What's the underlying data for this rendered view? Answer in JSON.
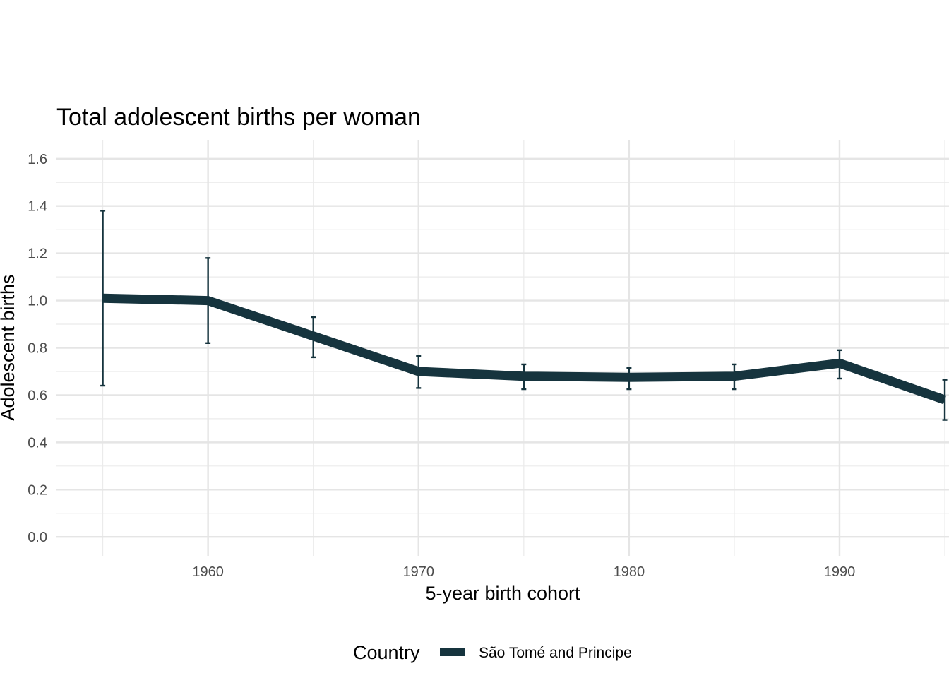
{
  "chart_data": {
    "type": "line",
    "title": "Total adolescent births per woman",
    "xlabel": "5-year birth cohort",
    "ylabel": "Adolescent births",
    "x": [
      1955,
      1960,
      1965,
      1970,
      1975,
      1980,
      1985,
      1990,
      1995
    ],
    "xlim": [
      1952.8,
      1995.2
    ],
    "ylim": [
      -0.08,
      1.68
    ],
    "x_ticks": [
      1960,
      1970,
      1980,
      1990
    ],
    "x_tick_labels": [
      "1960",
      "1970",
      "1980",
      "1990"
    ],
    "y_ticks": [
      0.0,
      0.2,
      0.4,
      0.6,
      0.8,
      1.0,
      1.2,
      1.4,
      1.6
    ],
    "y_tick_labels": [
      "0.0",
      "0.2",
      "0.4",
      "0.6",
      "0.8",
      "1.0",
      "1.2",
      "1.4",
      "1.6"
    ],
    "grid": true,
    "legend_title": "Country",
    "legend_position": "bottom",
    "series": [
      {
        "name": "São Tomé and Principe",
        "color": "#16343e",
        "values": [
          1.01,
          1.0,
          0.85,
          0.7,
          0.68,
          0.675,
          0.68,
          0.735,
          0.58
        ],
        "lower": [
          0.64,
          0.82,
          0.76,
          0.63,
          0.625,
          0.625,
          0.625,
          0.67,
          0.495
        ],
        "upper": [
          1.38,
          1.18,
          0.93,
          0.765,
          0.73,
          0.715,
          0.73,
          0.79,
          0.665
        ]
      }
    ]
  }
}
